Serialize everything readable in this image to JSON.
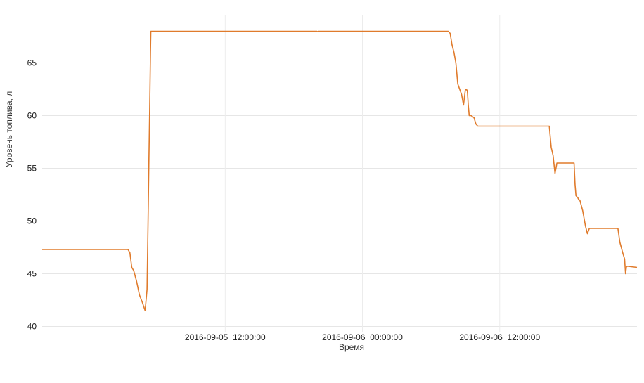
{
  "chart_data": {
    "type": "line",
    "title": "",
    "xlabel": "Время",
    "ylabel": "Уровень топлива, л",
    "ylim": [
      39.5,
      69.5
    ],
    "y_ticks": [
      40,
      45,
      50,
      55,
      60,
      65
    ],
    "x_axis": {
      "type": "time",
      "range": [
        "2016-09-04 20:00:00",
        "2016-09-07 00:00:00"
      ],
      "ticks": [
        "2016-09-05 12:00:00",
        "2016-09-06 00:00:00",
        "2016-09-06 12:00:00"
      ],
      "tick_labels": [
        "2016-09-05  12:00:00",
        "2016-09-06  00:00:00",
        "2016-09-06  12:00:00"
      ]
    },
    "grid": true,
    "legend": "none",
    "colors": {
      "series": "#e07b2c"
    },
    "series": [
      {
        "x": [
          "2016-09-04 20:00",
          "2016-09-05 03:30",
          "2016-09-05 03:40",
          "2016-09-05 03:50",
          "2016-09-05 04:00",
          "2016-09-05 04:15",
          "2016-09-05 04:30",
          "2016-09-05 04:45",
          "2016-09-05 05:00",
          "2016-09-05 05:10",
          "2016-09-05 05:15",
          "2016-09-05 05:20",
          "2016-09-05 05:25",
          "2016-09-05 05:28",
          "2016-09-05 05:30",
          "2016-09-05 05:32",
          "2016-09-05 05:35",
          "2016-09-05 05:40",
          "2016-09-05 05:45",
          "2016-09-05 05:50",
          "2016-09-05 06:00",
          "2016-09-05 20:00",
          "2016-09-05 20:05",
          "2016-09-05 20:10",
          "2016-09-06 07:30",
          "2016-09-06 07:40",
          "2016-09-06 07:50",
          "2016-09-06 08:00",
          "2016-09-06 08:10",
          "2016-09-06 08:20",
          "2016-09-06 08:30",
          "2016-09-06 08:40",
          "2016-09-06 08:50",
          "2016-09-06 09:00",
          "2016-09-06 09:10",
          "2016-09-06 09:15",
          "2016-09-06 09:20",
          "2016-09-06 09:30",
          "2016-09-06 09:45",
          "2016-09-06 09:55",
          "2016-09-06 10:05",
          "2016-09-06 10:15",
          "2016-09-06 10:30",
          "2016-09-06 10:40",
          "2016-09-06 10:50",
          "2016-09-06 11:00",
          "2016-09-06 16:20",
          "2016-09-06 16:30",
          "2016-09-06 16:40",
          "2016-09-06 16:50",
          "2016-09-06 17:00",
          "2016-09-06 17:05",
          "2016-09-06 17:10",
          "2016-09-06 17:15",
          "2016-09-06 18:30",
          "2016-09-06 18:35",
          "2016-09-06 18:40",
          "2016-09-06 18:50",
          "2016-09-06 18:55",
          "2016-09-06 19:00",
          "2016-09-06 19:15",
          "2016-09-06 19:30",
          "2016-09-06 19:40",
          "2016-09-06 19:50",
          "2016-09-06 20:00",
          "2016-09-06 20:05",
          "2016-09-06 20:10",
          "2016-09-06 22:20",
          "2016-09-06 22:30",
          "2016-09-06 22:45",
          "2016-09-06 22:55",
          "2016-09-06 23:00",
          "2016-09-06 23:05",
          "2016-09-06 23:10",
          "2016-09-06 23:15",
          "2016-09-07 00:00"
        ],
        "values": [
          47.3,
          47.3,
          47.0,
          45.6,
          45.3,
          44.3,
          43.0,
          42.3,
          41.5,
          43.5,
          49.5,
          56.0,
          62.0,
          66.0,
          68.0,
          68.0,
          68.0,
          68.0,
          68.0,
          68.0,
          68.0,
          68.0,
          67.95,
          68.0,
          68.0,
          67.8,
          66.7,
          66.0,
          65.0,
          63.0,
          62.5,
          62.0,
          61.0,
          62.5,
          62.4,
          61.0,
          60.0,
          60.0,
          59.8,
          59.2,
          59.0,
          59.0,
          59.0,
          59.0,
          59.0,
          59.0,
          59.0,
          57.0,
          56.2,
          54.5,
          55.5,
          55.5,
          55.5,
          55.5,
          55.5,
          53.5,
          52.4,
          52.2,
          52.0,
          52.0,
          51.0,
          49.5,
          48.8,
          49.3,
          49.3,
          49.3,
          49.3,
          49.3,
          48.0,
          47.0,
          46.4,
          45.0,
          45.7,
          45.7,
          45.7,
          45.6
        ]
      }
    ]
  }
}
